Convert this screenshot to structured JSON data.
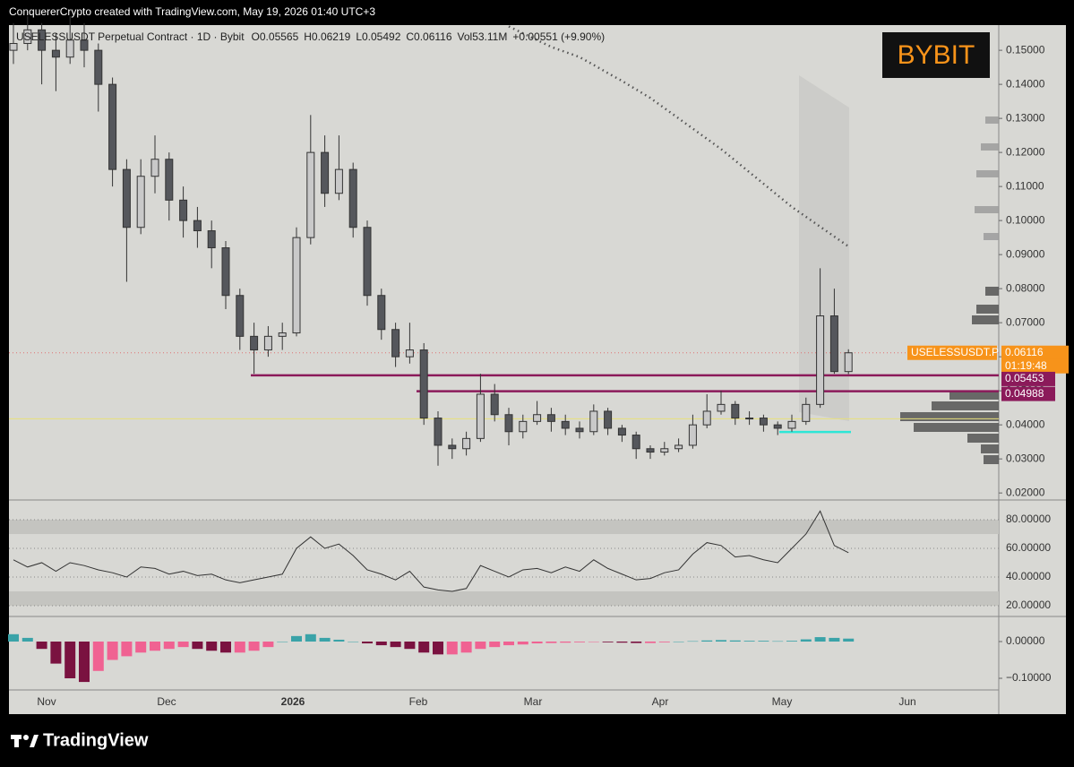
{
  "header": "ConquererCrypto created with TradingView.com, May 19, 2026 01:40 UTC+3",
  "footer": "TradingView",
  "chart_data": {
    "type": "candlestick",
    "legend": {
      "symbol": "USELESSUSDT Perpetual Contract · 1D · Bybit",
      "open": "O0.05565",
      "high": "H0.06219",
      "low": "L0.05492",
      "close": "C0.06116",
      "volume": "Vol53.11M",
      "change": "+0.00551 (+9.90%)"
    },
    "exchange": "BYBIT",
    "ticker": "USELESSUSDT.P",
    "last_price": 0.06116,
    "countdown": "01:19:48",
    "levels": [
      0.05453,
      0.04988
    ],
    "level_color": "#8b1a5a",
    "support_lines": [
      {
        "value": 0.0418,
        "color": "#e8e07a"
      },
      {
        "value": 0.0379,
        "color": "#2ee6d6"
      }
    ],
    "up_color": "#c9c9c9",
    "down_color": "#55575c",
    "ylim": [
      0.0182,
      0.1574
    ],
    "yticks": [
      {
        "value": 0.02,
        "label": "0.02000"
      },
      {
        "value": 0.03,
        "label": "0.03000"
      },
      {
        "value": 0.04,
        "label": "0.04000"
      },
      {
        "value": 0.05,
        "label": "0.05000"
      },
      {
        "value": 0.06,
        "label": "0.06000"
      },
      {
        "value": 0.07,
        "label": "0.07000"
      },
      {
        "value": 0.08,
        "label": "0.08000"
      },
      {
        "value": 0.09,
        "label": "0.09000"
      },
      {
        "value": 0.1,
        "label": "0.10000"
      },
      {
        "value": 0.11,
        "label": "0.11000"
      },
      {
        "value": 0.12,
        "label": "0.12000"
      },
      {
        "value": 0.13,
        "label": "0.13000"
      },
      {
        "value": 0.14,
        "label": "0.14000"
      },
      {
        "value": 0.15,
        "label": "0.15000"
      }
    ],
    "xtick_labels": [
      "Nov",
      "Dec",
      "2026",
      "Feb",
      "Mar",
      "Apr",
      "May",
      "Jun"
    ],
    "candles": [
      [
        0.15,
        0.158,
        0.146,
        0.152
      ],
      [
        0.152,
        0.16,
        0.15,
        0.156
      ],
      [
        0.156,
        0.158,
        0.14,
        0.15
      ],
      [
        0.15,
        0.155,
        0.138,
        0.148
      ],
      [
        0.148,
        0.16,
        0.146,
        0.153
      ],
      [
        0.153,
        0.158,
        0.145,
        0.15
      ],
      [
        0.15,
        0.152,
        0.132,
        0.14
      ],
      [
        0.14,
        0.142,
        0.11,
        0.115
      ],
      [
        0.115,
        0.118,
        0.082,
        0.098
      ],
      [
        0.098,
        0.118,
        0.096,
        0.113
      ],
      [
        0.113,
        0.125,
        0.108,
        0.118
      ],
      [
        0.118,
        0.12,
        0.1,
        0.106
      ],
      [
        0.106,
        0.11,
        0.095,
        0.1
      ],
      [
        0.1,
        0.104,
        0.092,
        0.097
      ],
      [
        0.097,
        0.1,
        0.086,
        0.092
      ],
      [
        0.092,
        0.094,
        0.074,
        0.078
      ],
      [
        0.078,
        0.08,
        0.062,
        0.066
      ],
      [
        0.066,
        0.07,
        0.055,
        0.062
      ],
      [
        0.062,
        0.069,
        0.06,
        0.066
      ],
      [
        0.066,
        0.07,
        0.062,
        0.067
      ],
      [
        0.067,
        0.098,
        0.066,
        0.095
      ],
      [
        0.095,
        0.131,
        0.093,
        0.12
      ],
      [
        0.12,
        0.125,
        0.104,
        0.108
      ],
      [
        0.108,
        0.125,
        0.106,
        0.115
      ],
      [
        0.115,
        0.117,
        0.095,
        0.098
      ],
      [
        0.098,
        0.1,
        0.075,
        0.078
      ],
      [
        0.078,
        0.08,
        0.065,
        0.068
      ],
      [
        0.068,
        0.07,
        0.057,
        0.06
      ],
      [
        0.06,
        0.07,
        0.058,
        0.062
      ],
      [
        0.062,
        0.064,
        0.04,
        0.042
      ],
      [
        0.042,
        0.044,
        0.028,
        0.034
      ],
      [
        0.034,
        0.036,
        0.03,
        0.033
      ],
      [
        0.033,
        0.038,
        0.031,
        0.036
      ],
      [
        0.036,
        0.055,
        0.035,
        0.049
      ],
      [
        0.049,
        0.052,
        0.041,
        0.043
      ],
      [
        0.043,
        0.045,
        0.034,
        0.038
      ],
      [
        0.038,
        0.043,
        0.036,
        0.041
      ],
      [
        0.041,
        0.047,
        0.04,
        0.043
      ],
      [
        0.043,
        0.045,
        0.038,
        0.041
      ],
      [
        0.041,
        0.043,
        0.037,
        0.039
      ],
      [
        0.039,
        0.041,
        0.036,
        0.038
      ],
      [
        0.038,
        0.046,
        0.037,
        0.044
      ],
      [
        0.044,
        0.045,
        0.037,
        0.039
      ],
      [
        0.039,
        0.04,
        0.035,
        0.037
      ],
      [
        0.037,
        0.038,
        0.03,
        0.033
      ],
      [
        0.033,
        0.034,
        0.03,
        0.032
      ],
      [
        0.032,
        0.035,
        0.031,
        0.033
      ],
      [
        0.033,
        0.036,
        0.032,
        0.034
      ],
      [
        0.034,
        0.043,
        0.033,
        0.04
      ],
      [
        0.04,
        0.049,
        0.039,
        0.044
      ],
      [
        0.044,
        0.05,
        0.043,
        0.046
      ],
      [
        0.046,
        0.047,
        0.04,
        0.042
      ],
      [
        0.042,
        0.044,
        0.04,
        0.042
      ],
      [
        0.042,
        0.043,
        0.038,
        0.04
      ],
      [
        0.04,
        0.041,
        0.037,
        0.039
      ],
      [
        0.039,
        0.043,
        0.038,
        0.041
      ],
      [
        0.041,
        0.048,
        0.04,
        0.046
      ],
      [
        0.046,
        0.086,
        0.045,
        0.072
      ],
      [
        0.072,
        0.08,
        0.055,
        0.05565
      ],
      [
        0.05565,
        0.06219,
        0.05492,
        0.06116
      ]
    ],
    "ma": [
      null,
      null,
      null,
      null,
      null,
      null,
      null,
      null,
      null,
      null,
      null,
      null,
      null,
      null,
      null,
      null,
      null,
      null,
      null,
      null,
      null,
      null,
      null,
      null,
      null,
      null,
      null,
      null,
      null,
      null,
      null,
      null,
      null,
      null,
      null,
      0.157,
      0.155,
      0.153,
      0.151,
      0.1495,
      0.148,
      0.1457,
      0.1433,
      0.141,
      0.1385,
      0.136,
      0.133,
      0.13,
      0.127,
      0.124,
      0.121,
      0.1176,
      0.1142,
      0.1108,
      0.1074,
      0.104,
      0.1011,
      0.0982,
      0.0953,
      0.0924
    ],
    "ma_color": "#555",
    "rsi": {
      "values": [
        52,
        47,
        50,
        44,
        50,
        48,
        45,
        43,
        40,
        47,
        46,
        42,
        44,
        41,
        42,
        38,
        36,
        38,
        40,
        42,
        60,
        68,
        60,
        63,
        55,
        45,
        42,
        38,
        44,
        33,
        31,
        30,
        32,
        48,
        44,
        40,
        45,
        46,
        43,
        47,
        44,
        52,
        46,
        42,
        38,
        39,
        43,
        45,
        56,
        64,
        62,
        54,
        55,
        52,
        50,
        60,
        70,
        86,
        62,
        57
      ],
      "color": "#333",
      "ylim": [
        13.1,
        92.5
      ],
      "yticks": [
        {
          "value": 20,
          "label": "20.00000"
        },
        {
          "value": 40,
          "label": "40.00000"
        },
        {
          "value": 60,
          "label": "60.00000"
        },
        {
          "value": 80,
          "label": "80.00000"
        }
      ]
    },
    "macd": {
      "values": [
        0.02,
        0.01,
        -0.02,
        -0.06,
        -0.1,
        -0.11,
        -0.08,
        -0.05,
        -0.04,
        -0.03,
        -0.025,
        -0.02,
        -0.015,
        -0.02,
        -0.025,
        -0.03,
        -0.03,
        -0.025,
        -0.015,
        0.0,
        0.015,
        0.02,
        0.01,
        0.005,
        0.0,
        -0.005,
        -0.01,
        -0.015,
        -0.02,
        -0.03,
        -0.035,
        -0.035,
        -0.03,
        -0.02,
        -0.015,
        -0.01,
        -0.008,
        -0.005,
        -0.004,
        -0.003,
        -0.002,
        -0.001,
        -0.002,
        -0.003,
        -0.004,
        -0.004,
        -0.002,
        0.0,
        0.001,
        0.003,
        0.004,
        0.003,
        0.002,
        0.002,
        0.001,
        0.002,
        0.006,
        0.012,
        0.01,
        0.008
      ],
      "positive_color": "#3aa3a8",
      "negative_color": "#f06292",
      "negative_deep_color": "#7a1240",
      "ylim": [
        -0.1317,
        0.0634
      ],
      "yticks": [
        {
          "value": 0,
          "label": "0.00000"
        },
        {
          "value": -0.1,
          "label": "−0.10000"
        }
      ]
    }
  }
}
